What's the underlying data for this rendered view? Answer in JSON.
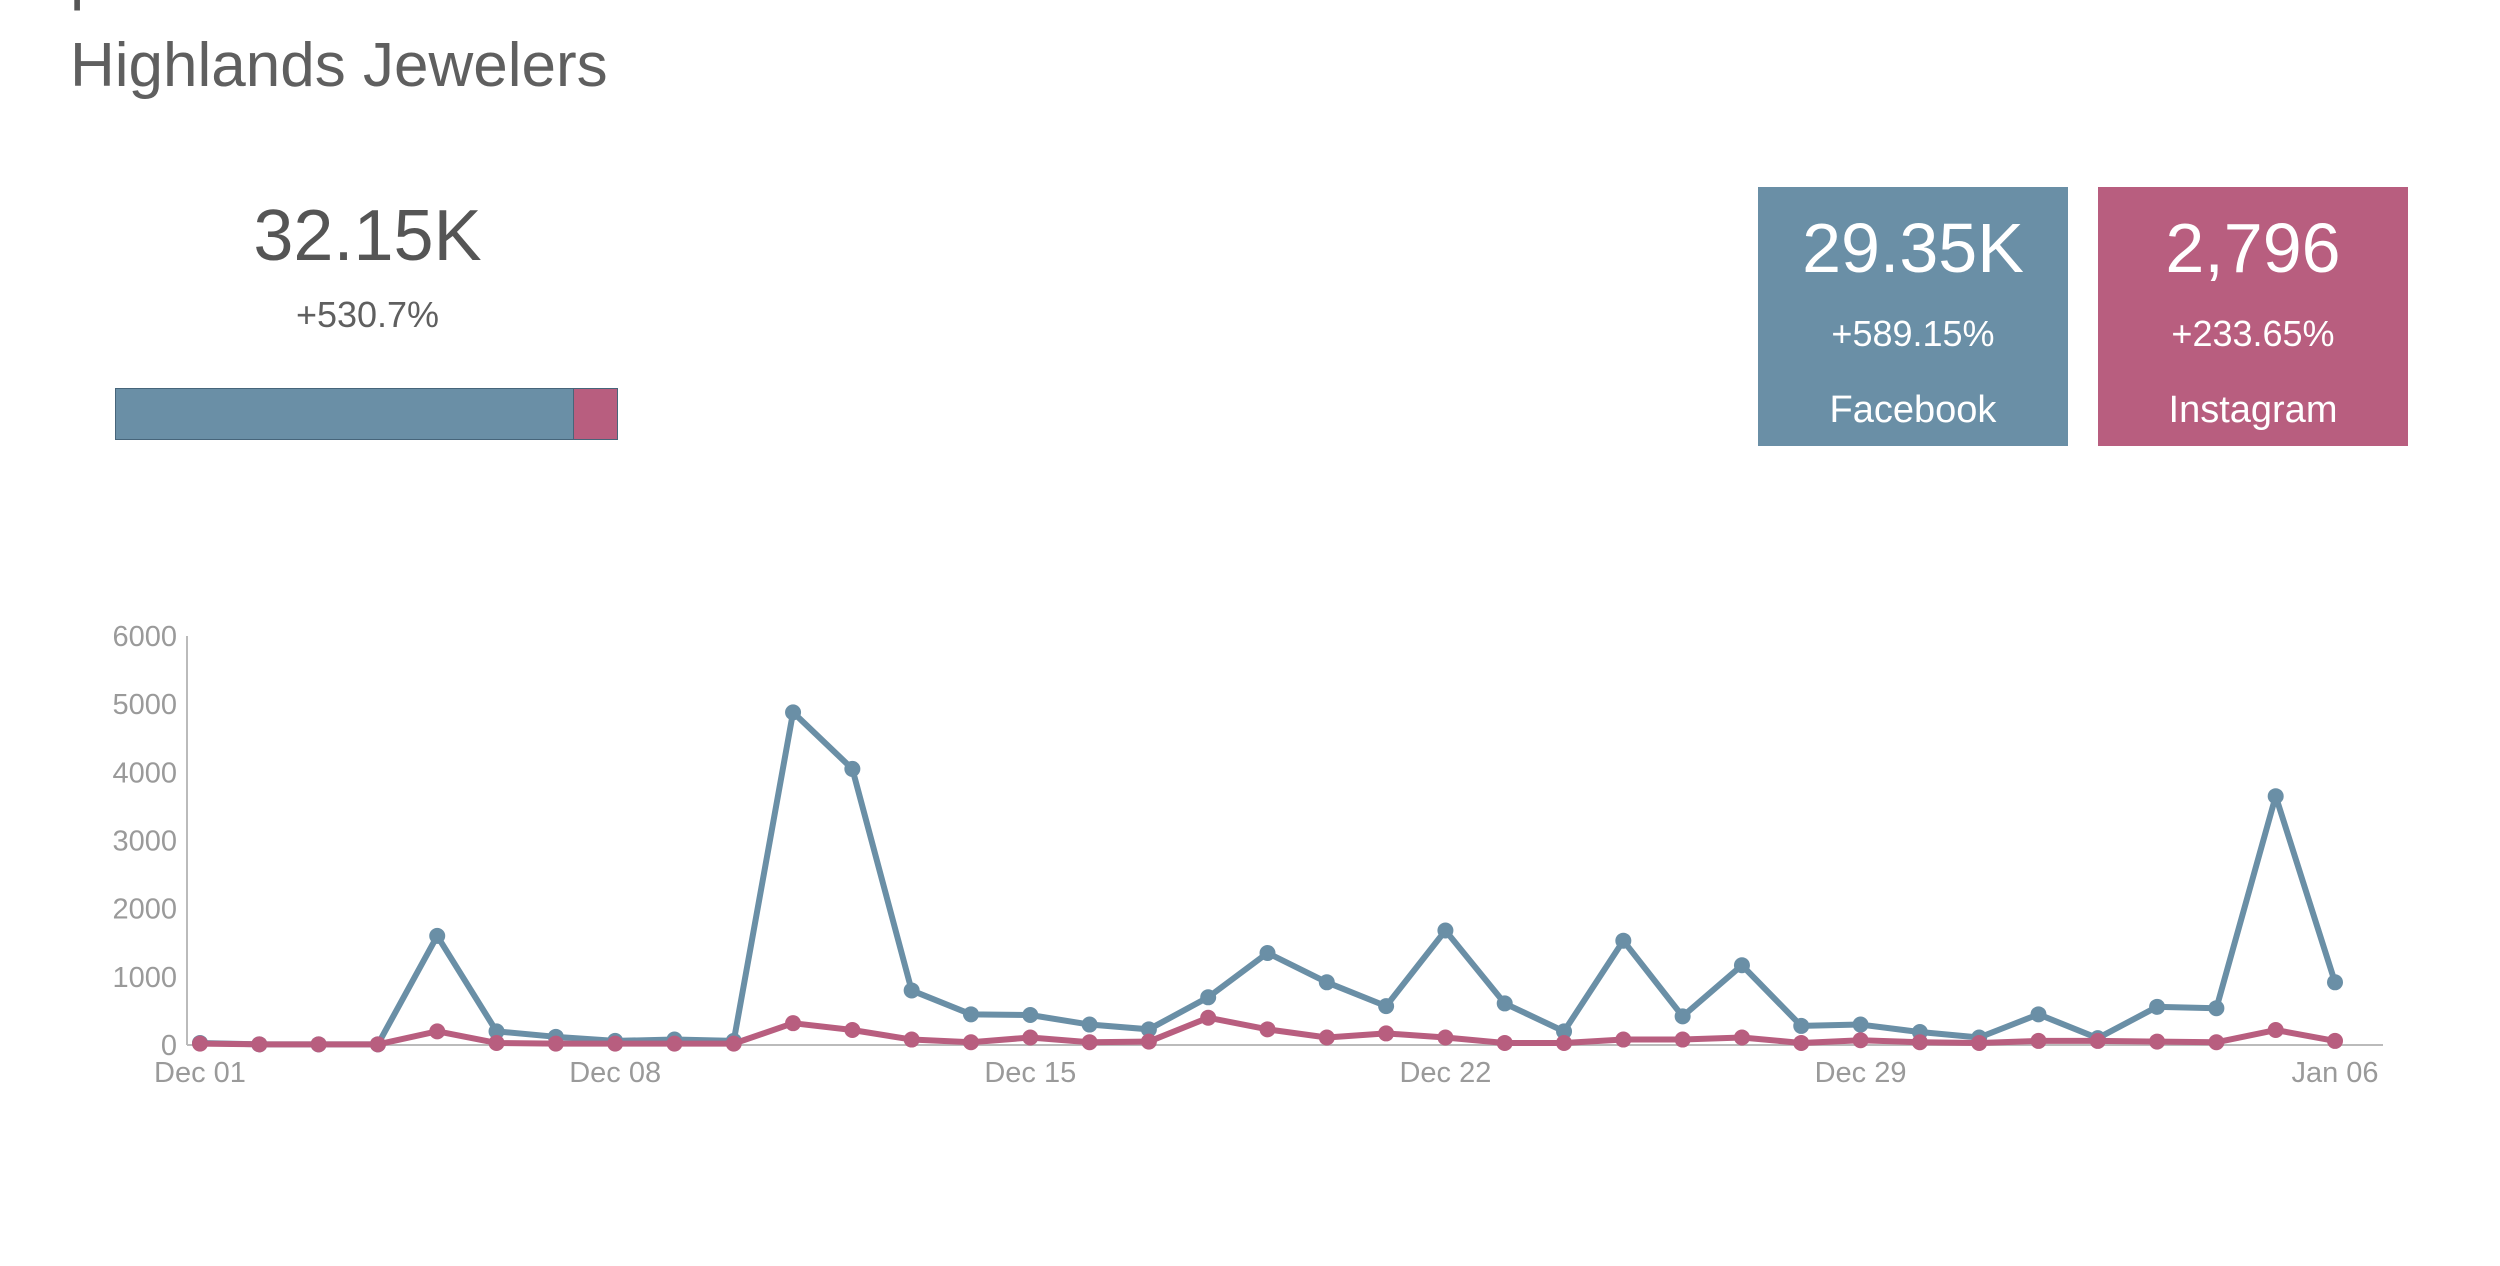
{
  "header": {
    "title": "p",
    "subtitle": "Highlands Jewelers"
  },
  "summary": {
    "total_value": "32.15K",
    "total_change": "+530.7%",
    "split": [
      {
        "name": "Facebook",
        "value": 29350,
        "color": "#6a8fa6"
      },
      {
        "name": "Instagram",
        "value": 2796,
        "color": "#b85e7f"
      }
    ]
  },
  "cards": [
    {
      "value": "29.35K",
      "change": "+589.15%",
      "label": "Facebook",
      "color": "#6a8fa6"
    },
    {
      "value": "2,796",
      "change": "+233.65%",
      "label": "Instagram",
      "color": "#b85e7f"
    }
  ],
  "chart_data": {
    "type": "line",
    "x": [
      "Dec 01",
      "Dec 02",
      "Dec 03",
      "Dec 04",
      "Dec 05",
      "Dec 06",
      "Dec 07",
      "Dec 08",
      "Dec 09",
      "Dec 10",
      "Dec 11",
      "Dec 12",
      "Dec 13",
      "Dec 14",
      "Dec 15",
      "Dec 16",
      "Dec 17",
      "Dec 18",
      "Dec 19",
      "Dec 20",
      "Dec 21",
      "Dec 22",
      "Dec 23",
      "Dec 24",
      "Dec 25",
      "Dec 26",
      "Dec 27",
      "Dec 28",
      "Dec 29",
      "Dec 30",
      "Dec 31",
      "Jan 01",
      "Jan 02",
      "Jan 03",
      "Jan 04",
      "Jan 05",
      "Jan 06"
    ],
    "x_tick_labels": [
      "Dec 01",
      "Dec 08",
      "Dec 15",
      "Dec 22",
      "Dec 29",
      "Jan 06"
    ],
    "x_tick_index": [
      0,
      7,
      14,
      21,
      28,
      36
    ],
    "y_ticks": [
      "0",
      "1000",
      "2000",
      "3000",
      "4000",
      "5000",
      "6000"
    ],
    "ylim": [
      0,
      6000
    ],
    "grid": false,
    "series": [
      {
        "color": "#6a8fa6",
        "values": [
          30,
          10,
          10,
          10,
          1600,
          200,
          120,
          60,
          80,
          60,
          4880,
          4050,
          800,
          450,
          440,
          300,
          230,
          700,
          1350,
          920,
          570,
          1680,
          610,
          200,
          1530,
          420,
          1170,
          280,
          300,
          190,
          110,
          450,
          100,
          560,
          540,
          3650,
          920
        ]
      },
      {
        "color": "#b85e7f",
        "values": [
          20,
          10,
          10,
          10,
          200,
          30,
          20,
          20,
          20,
          20,
          320,
          220,
          80,
          40,
          110,
          40,
          50,
          400,
          230,
          110,
          170,
          110,
          30,
          30,
          80,
          80,
          110,
          30,
          70,
          40,
          30,
          60,
          60,
          50,
          40,
          220,
          60
        ]
      }
    ]
  }
}
